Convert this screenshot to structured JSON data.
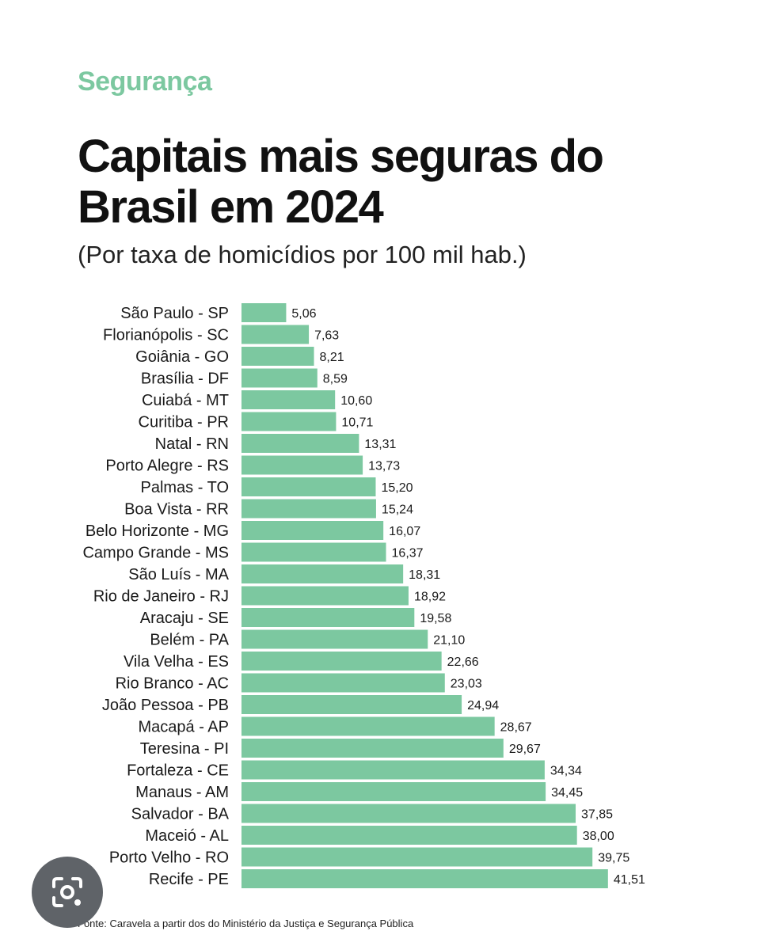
{
  "header": {
    "kicker": "Segurança",
    "title": "Capitais mais seguras do Brasil em 2024",
    "subtitle": "(Por taxa de homicídios por 100 mil hab.)"
  },
  "footer": {
    "source": "Fonte: Caravela a partir dos do Ministério da Justiça e Segurança Pública"
  },
  "colors": {
    "bar": "#7cc8a0",
    "kicker": "#7cc8a0",
    "text": "#111111"
  },
  "overlay": {
    "lens_icon": "lens-camera-icon"
  },
  "chart_data": {
    "type": "bar",
    "orientation": "horizontal",
    "title": "Capitais mais seguras do Brasil em 2024",
    "subtitle": "(Por taxa de homicídios por 100 mil hab.)",
    "xlabel": "",
    "ylabel": "",
    "grid": false,
    "legend": "none",
    "xlim": [
      0,
      42
    ],
    "categories": [
      "São Paulo - SP",
      "Florianópolis - SC",
      "Goiânia - GO",
      "Brasília - DF",
      "Cuiabá - MT",
      "Curitiba - PR",
      "Natal - RN",
      "Porto Alegre - RS",
      "Palmas - TO",
      "Boa Vista - RR",
      "Belo Horizonte - MG",
      "Campo Grande - MS",
      "São Luís - MA",
      "Rio de Janeiro - RJ",
      "Aracaju - SE",
      "Belém - PA",
      "Vila Velha - ES",
      "Rio Branco - AC",
      "João Pessoa - PB",
      "Macapá - AP",
      "Teresina - PI",
      "Fortaleza - CE",
      "Manaus - AM",
      "Salvador - BA",
      "Maceió - AL",
      "Porto Velho - RO",
      "Recife - PE"
    ],
    "values": [
      5.06,
      7.63,
      8.21,
      8.59,
      10.6,
      10.71,
      13.31,
      13.73,
      15.2,
      15.24,
      16.07,
      16.37,
      18.31,
      18.92,
      19.58,
      21.1,
      22.66,
      23.03,
      24.94,
      28.67,
      29.67,
      34.34,
      34.45,
      37.85,
      38.0,
      39.75,
      41.51
    ],
    "value_labels": [
      "5,06",
      "7,63",
      "8,21",
      "8,59",
      "10,60",
      "10,71",
      "13,31",
      "13,73",
      "15,20",
      "15,24",
      "16,07",
      "16,37",
      "18,31",
      "18,92",
      "19,58",
      "21,10",
      "22,66",
      "23,03",
      "24,94",
      "28,67",
      "29,67",
      "34,34",
      "34,45",
      "37,85",
      "38,00",
      "39,75",
      "41,51"
    ]
  }
}
